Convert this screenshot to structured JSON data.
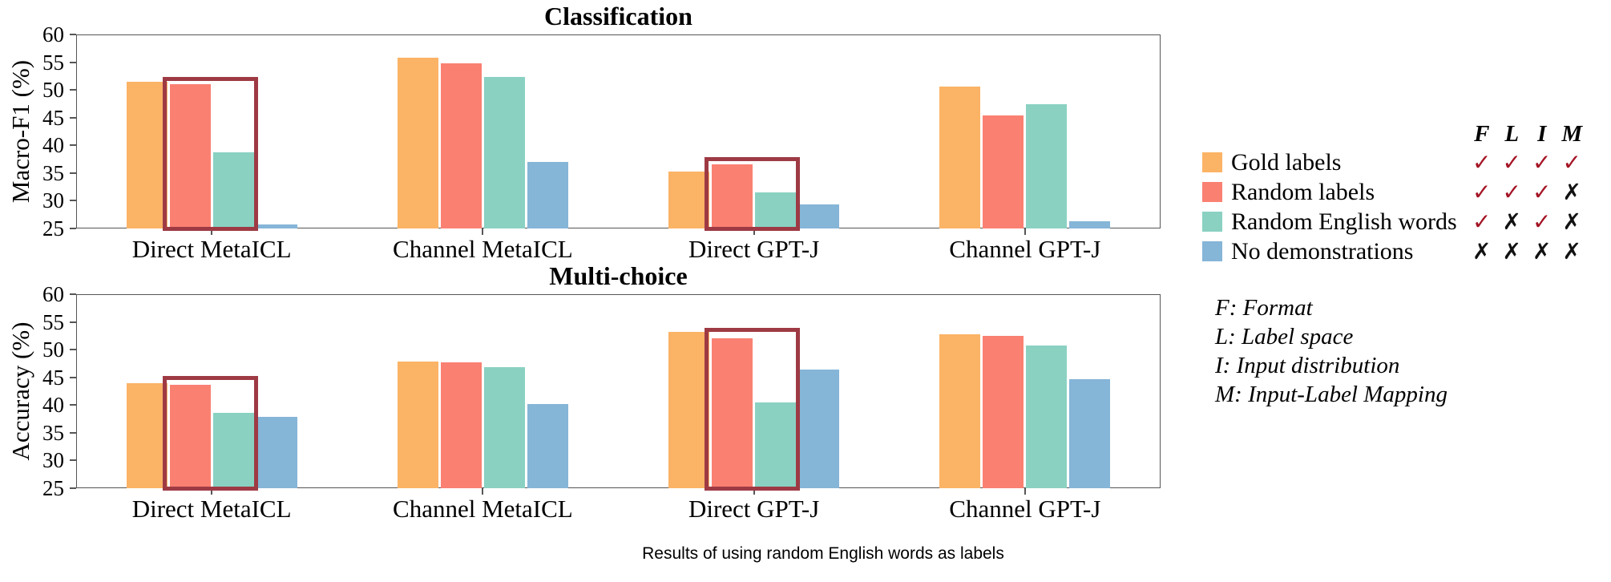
{
  "caption": "Results of using random English words as labels",
  "colors": {
    "gold": "#FBB366",
    "random_labels": "#FA8072",
    "random_english": "#8AD1C2",
    "no_demos": "#85B5D7",
    "highlight": "#9e3a44",
    "check": "#a41425",
    "cross": "#111111",
    "axis": "#565656"
  },
  "legend": {
    "header_cols": [
      "F",
      "L",
      "I",
      "M"
    ],
    "items": [
      {
        "label": "Gold labels",
        "color_key": "gold",
        "marks": [
          "check",
          "check",
          "check",
          "check"
        ]
      },
      {
        "label": "Random labels",
        "color_key": "random_labels",
        "marks": [
          "check",
          "check",
          "check",
          "cross"
        ]
      },
      {
        "label": "Random English words",
        "color_key": "random_english",
        "marks": [
          "check",
          "cross",
          "check",
          "cross"
        ]
      },
      {
        "label": "No demonstrations",
        "color_key": "no_demos",
        "marks": [
          "cross",
          "cross",
          "cross",
          "cross"
        ]
      }
    ],
    "notes": [
      "F: Format",
      "L: Label space",
      "I: Input distribution",
      "M: Input-Label Mapping"
    ]
  },
  "chart_data": [
    {
      "type": "bar",
      "title": "Classification",
      "ylabel": "Macro-F1 (%)",
      "ylim": [
        25,
        60
      ],
      "yticks": [
        60,
        55,
        50,
        45,
        40,
        35,
        30,
        25
      ],
      "grid": false,
      "categories": [
        "Direct MetaICL",
        "Channel MetaICL",
        "Direct GPT-J",
        "Channel GPT-J"
      ],
      "series": [
        {
          "name": "Gold labels",
          "values": [
            51.5,
            55.8,
            35.2,
            50.6
          ]
        },
        {
          "name": "Random labels",
          "values": [
            51.0,
            54.8,
            36.5,
            45.4
          ]
        },
        {
          "name": "Random English words",
          "values": [
            38.7,
            52.4,
            31.5,
            47.4
          ]
        },
        {
          "name": "No demonstrations",
          "values": [
            25.7,
            37.0,
            29.3,
            26.3
          ]
        }
      ],
      "highlights": [
        {
          "group": 0,
          "top": 52.3,
          "series_covered": [
            "Random labels",
            "Random English words"
          ]
        },
        {
          "group": 2,
          "top": 37.9,
          "series_covered": [
            "Random labels",
            "Random English words"
          ]
        }
      ]
    },
    {
      "type": "bar",
      "title": "Multi-choice",
      "ylabel": "Accuracy (%)",
      "ylim": [
        25,
        60
      ],
      "yticks": [
        60,
        55,
        50,
        45,
        40,
        35,
        30,
        25
      ],
      "grid": false,
      "categories": [
        "Direct MetaICL",
        "Channel MetaICL",
        "Direct GPT-J",
        "Channel GPT-J"
      ],
      "series": [
        {
          "name": "Gold labels",
          "values": [
            43.9,
            47.9,
            53.2,
            52.7
          ]
        },
        {
          "name": "Random labels",
          "values": [
            43.6,
            47.7,
            52.1,
            52.5
          ]
        },
        {
          "name": "Random English words",
          "values": [
            38.6,
            46.8,
            40.5,
            50.7
          ]
        },
        {
          "name": "No demonstrations",
          "values": [
            37.9,
            40.2,
            46.4,
            44.6
          ]
        }
      ],
      "highlights": [
        {
          "group": 0,
          "top": 45.3,
          "series_covered": [
            "Random labels",
            "Random English words"
          ]
        },
        {
          "group": 2,
          "top": 53.9,
          "series_covered": [
            "Random labels",
            "Random English words"
          ]
        }
      ]
    }
  ]
}
